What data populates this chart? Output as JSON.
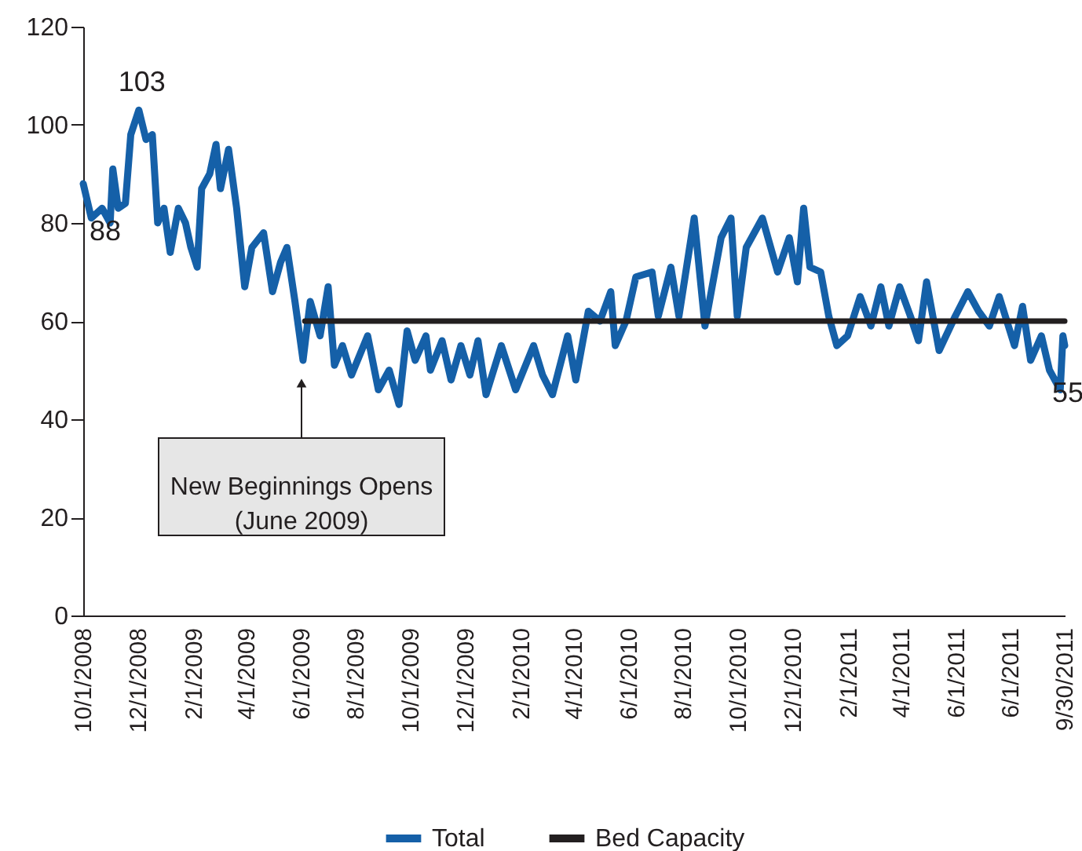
{
  "chart_data": {
    "type": "line",
    "xlim": [
      "2008-10-01",
      "2011-09-30"
    ],
    "xticks": [
      {
        "value": "2008-10-01",
        "label": "10/1/2008"
      },
      {
        "value": "2008-12-01",
        "label": "12/1/2008"
      },
      {
        "value": "2009-02-01",
        "label": "2/1/2009"
      },
      {
        "value": "2009-04-01",
        "label": "4/1/2009"
      },
      {
        "value": "2009-06-01",
        "label": "6/1/2009"
      },
      {
        "value": "2009-08-01",
        "label": "8/1/2009"
      },
      {
        "value": "2009-10-01",
        "label": "10/1/2009"
      },
      {
        "value": "2009-12-01",
        "label": "12/1/2009"
      },
      {
        "value": "2010-02-01",
        "label": "2/1/2010"
      },
      {
        "value": "2010-04-01",
        "label": "4/1/2010"
      },
      {
        "value": "2010-06-01",
        "label": "6/1/2010"
      },
      {
        "value": "2010-08-01",
        "label": "8/1/2010"
      },
      {
        "value": "2010-10-01",
        "label": "10/1/2010"
      },
      {
        "value": "2010-12-01",
        "label": "12/1/2010"
      },
      {
        "value": "2011-02-01",
        "label": "2/1/2011"
      },
      {
        "value": "2011-04-01",
        "label": "4/1/2011"
      },
      {
        "value": "2011-06-01",
        "label": "6/1/2011"
      },
      {
        "value": "2011-08-01",
        "label": "6/1/2011"
      },
      {
        "value": "2011-09-30",
        "label": "9/30/2011"
      }
    ],
    "ylim": [
      0,
      120
    ],
    "yticks": [
      0,
      20,
      40,
      60,
      80,
      100,
      120
    ],
    "grid": false,
    "legend": "bottom",
    "marker": "none",
    "line_style": "solid",
    "series": [
      {
        "name": "Total",
        "color": "#1560a8",
        "x": [
          "2008-10-01",
          "2008-10-10",
          "2008-10-22",
          "2008-10-31",
          "2008-11-03",
          "2008-11-09",
          "2008-11-17",
          "2008-11-23",
          "2008-12-02",
          "2008-12-10",
          "2008-12-17",
          "2008-12-23",
          "2008-12-30",
          "2009-01-06",
          "2009-01-15",
          "2009-01-23",
          "2009-01-29",
          "2009-02-05",
          "2009-02-10",
          "2009-02-19",
          "2009-02-26",
          "2009-03-03",
          "2009-03-12",
          "2009-03-21",
          "2009-03-30",
          "2009-04-07",
          "2009-04-20",
          "2009-04-30",
          "2009-05-09",
          "2009-05-16",
          "2009-05-25",
          "2009-06-03",
          "2009-06-11",
          "2009-06-22",
          "2009-07-01",
          "2009-07-08",
          "2009-07-17",
          "2009-07-27",
          "2009-08-05",
          "2009-08-14",
          "2009-08-26",
          "2009-09-07",
          "2009-09-18",
          "2009-09-27",
          "2009-10-06",
          "2009-10-18",
          "2009-10-23",
          "2009-11-05",
          "2009-11-15",
          "2009-11-26",
          "2009-12-06",
          "2009-12-15",
          "2009-12-24",
          "2010-01-10",
          "2010-01-26",
          "2010-02-15",
          "2010-02-25",
          "2010-03-08",
          "2010-03-25",
          "2010-04-03",
          "2010-04-17",
          "2010-04-30",
          "2010-05-12",
          "2010-05-17",
          "2010-05-29",
          "2010-06-09",
          "2010-06-27",
          "2010-07-04",
          "2010-07-18",
          "2010-07-27",
          "2010-08-13",
          "2010-08-25",
          "2010-09-12",
          "2010-09-23",
          "2010-09-30",
          "2010-10-10",
          "2010-10-28",
          "2010-11-14",
          "2010-11-27",
          "2010-12-06",
          "2010-12-13",
          "2010-12-20",
          "2011-01-01",
          "2011-01-10",
          "2011-01-19",
          "2011-01-31",
          "2011-02-14",
          "2011-02-26",
          "2011-03-09",
          "2011-03-18",
          "2011-03-30",
          "2011-04-11",
          "2011-04-20",
          "2011-04-29",
          "2011-05-13",
          "2011-05-31",
          "2011-06-14",
          "2011-06-26",
          "2011-07-08",
          "2011-07-19",
          "2011-08-05",
          "2011-08-14",
          "2011-08-23",
          "2011-09-04",
          "2011-09-13",
          "2011-09-25",
          "2011-09-28",
          "2011-09-30"
        ],
        "values": [
          88,
          81,
          83,
          80,
          91,
          83,
          84,
          98,
          103,
          97,
          98,
          80,
          83,
          74,
          83,
          80,
          75,
          71,
          87,
          90,
          96,
          87,
          95,
          83,
          67,
          75,
          78,
          66,
          72,
          75,
          64,
          52,
          64,
          57,
          67,
          51,
          55,
          49,
          53,
          57,
          46,
          50,
          43,
          58,
          52,
          57,
          50,
          56,
          48,
          55,
          49,
          56,
          45,
          55,
          46,
          55,
          49,
          45,
          57,
          48,
          62,
          60,
          66,
          55,
          60,
          69,
          70,
          61,
          71,
          61,
          81,
          59,
          77,
          81,
          61,
          75,
          81,
          70,
          77,
          68,
          83,
          71,
          70,
          61,
          55,
          57,
          65,
          59,
          67,
          59,
          67,
          61,
          56,
          68,
          54,
          61,
          66,
          62,
          59,
          65,
          55,
          63,
          52,
          57,
          50,
          46,
          57,
          55
        ]
      },
      {
        "name": "Bed Capacity",
        "color": "#231f20",
        "x": [
          "2009-06-05",
          "2011-09-30"
        ],
        "values": [
          60,
          60
        ]
      }
    ],
    "annotations": [
      {
        "text": "103",
        "x": "2008-12-02",
        "y": 103
      },
      {
        "text": "88",
        "x": "2008-10-01",
        "y": 88
      },
      {
        "text": "55",
        "x": "2011-09-30",
        "y": 55
      },
      "New Beginnings Opens\n(June 2009)"
    ]
  }
}
